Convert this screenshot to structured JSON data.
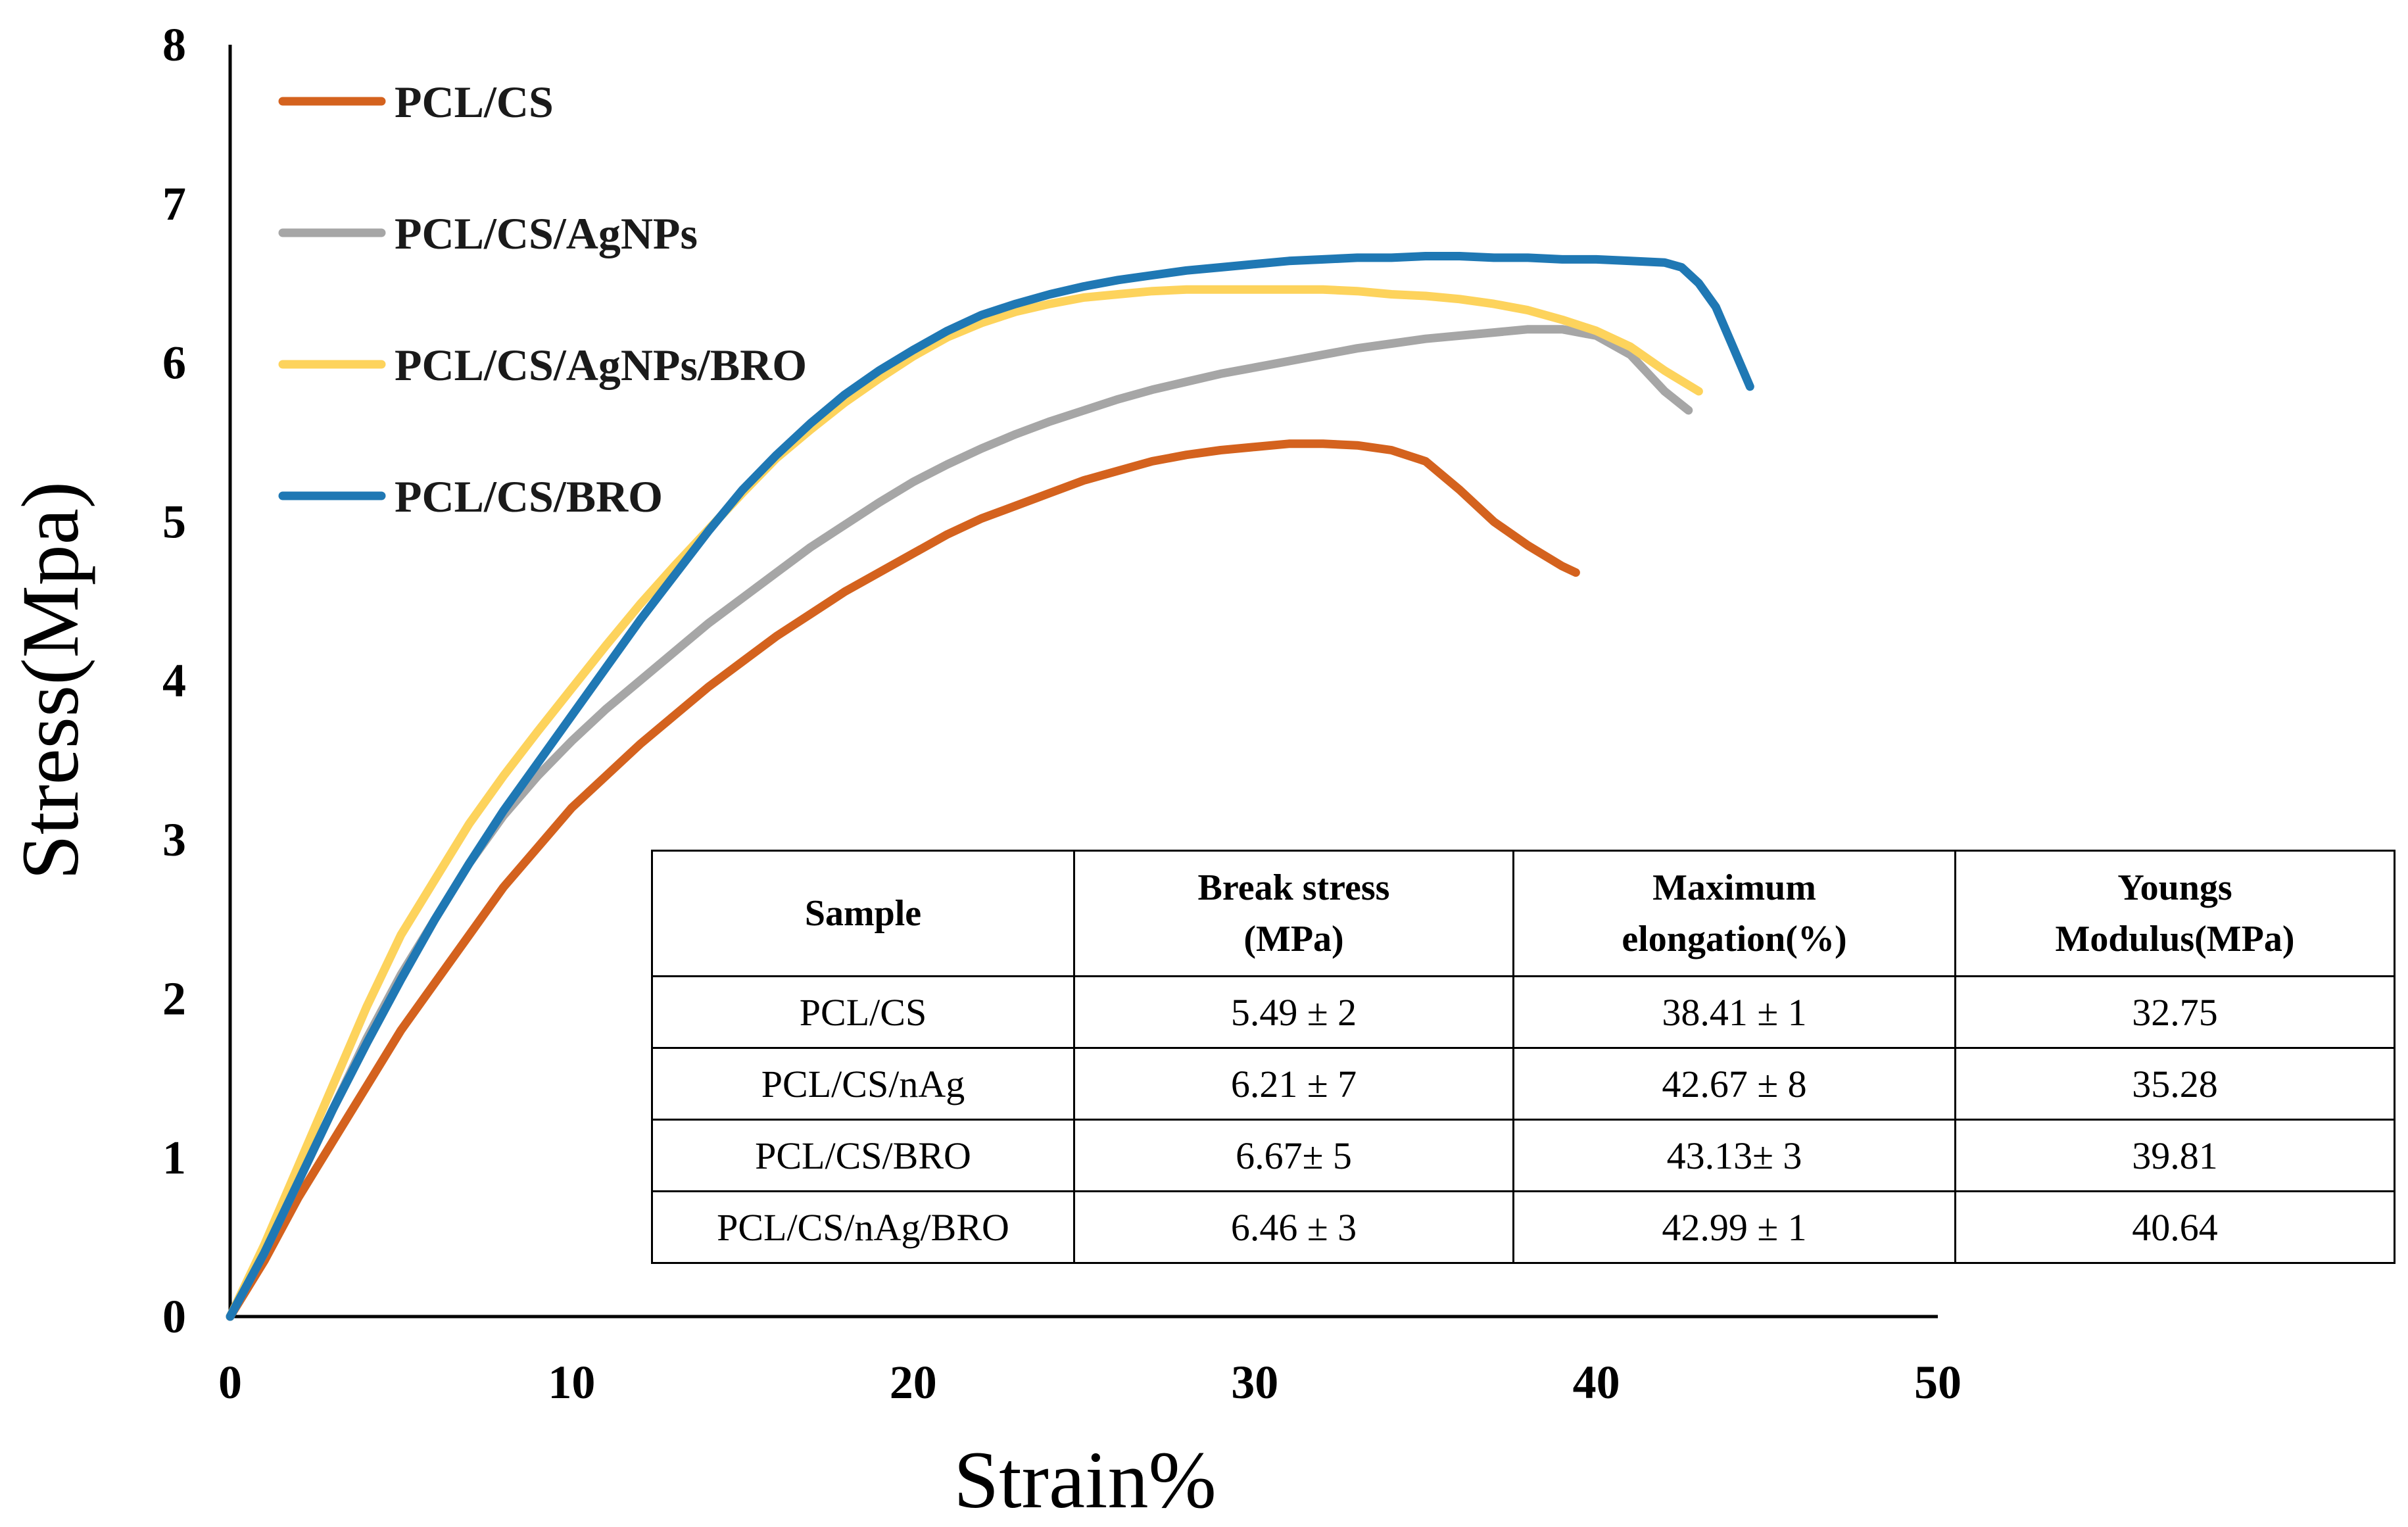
{
  "chart_data": {
    "type": "line",
    "title": "",
    "xlabel": "Strain%",
    "ylabel": "Stress(Mpa)",
    "xlim": [
      0,
      50
    ],
    "ylim": [
      0,
      8
    ],
    "xticks": [
      0,
      10,
      20,
      30,
      40,
      50
    ],
    "yticks": [
      0,
      1,
      2,
      3,
      4,
      5,
      6,
      7,
      8
    ],
    "grid": false,
    "legend_position": "top-left",
    "series": [
      {
        "name": "PCL/CS",
        "color": "#d4621e",
        "x": [
          0,
          1,
          2,
          3,
          4,
          5,
          6,
          7,
          8,
          9,
          10,
          11,
          12,
          13,
          14,
          15,
          16,
          17,
          18,
          19,
          20,
          21,
          22,
          23,
          24,
          25,
          26,
          27,
          28,
          29,
          30,
          31,
          32,
          33,
          34,
          35,
          36,
          37,
          38,
          39,
          39.4
        ],
        "y": [
          0,
          0.35,
          0.75,
          1.1,
          1.45,
          1.8,
          2.1,
          2.4,
          2.7,
          2.95,
          3.2,
          3.4,
          3.6,
          3.78,
          3.96,
          4.12,
          4.28,
          4.42,
          4.56,
          4.68,
          4.8,
          4.92,
          5.02,
          5.1,
          5.18,
          5.26,
          5.32,
          5.38,
          5.42,
          5.45,
          5.47,
          5.49,
          5.49,
          5.48,
          5.45,
          5.38,
          5.2,
          5.0,
          4.85,
          4.72,
          4.68
        ]
      },
      {
        "name": "PCL/CS/AgNPs",
        "color": "#a6a6a6",
        "x": [
          0,
          1,
          2,
          3,
          4,
          5,
          6,
          7,
          8,
          9,
          10,
          11,
          12,
          13,
          14,
          15,
          16,
          17,
          18,
          19,
          20,
          21,
          22,
          23,
          24,
          25,
          26,
          27,
          28,
          29,
          30,
          31,
          32,
          33,
          34,
          35,
          36,
          37,
          38,
          39,
          40,
          41,
          42,
          42.7
        ],
        "y": [
          0,
          0.4,
          0.85,
          1.3,
          1.75,
          2.15,
          2.5,
          2.85,
          3.15,
          3.4,
          3.62,
          3.82,
          4.0,
          4.18,
          4.36,
          4.52,
          4.68,
          4.84,
          4.98,
          5.12,
          5.25,
          5.36,
          5.46,
          5.55,
          5.63,
          5.7,
          5.77,
          5.83,
          5.88,
          5.93,
          5.97,
          6.01,
          6.05,
          6.09,
          6.12,
          6.15,
          6.17,
          6.19,
          6.21,
          6.21,
          6.17,
          6.05,
          5.82,
          5.7
        ]
      },
      {
        "name": "PCL/CS/AgNPs/BRO",
        "color": "#fdd35c",
        "x": [
          0,
          1,
          2,
          3,
          4,
          5,
          6,
          7,
          8,
          9,
          10,
          11,
          12,
          13,
          14,
          15,
          16,
          17,
          18,
          19,
          20,
          21,
          22,
          23,
          24,
          25,
          26,
          27,
          28,
          29,
          30,
          31,
          32,
          33,
          34,
          35,
          36,
          37,
          38,
          39,
          40,
          41,
          42,
          43
        ],
        "y": [
          0,
          0.45,
          0.95,
          1.45,
          1.95,
          2.4,
          2.75,
          3.1,
          3.4,
          3.68,
          3.95,
          4.22,
          4.48,
          4.72,
          4.95,
          5.18,
          5.4,
          5.58,
          5.75,
          5.9,
          6.04,
          6.16,
          6.25,
          6.32,
          6.37,
          6.41,
          6.43,
          6.45,
          6.46,
          6.46,
          6.46,
          6.46,
          6.46,
          6.45,
          6.43,
          6.42,
          6.4,
          6.37,
          6.33,
          6.27,
          6.2,
          6.1,
          5.95,
          5.82
        ]
      },
      {
        "name": "PCL/CS/BRO",
        "color": "#1f78b4",
        "x": [
          0,
          1,
          2,
          3,
          4,
          5,
          6,
          7,
          8,
          9,
          10,
          11,
          12,
          13,
          14,
          15,
          16,
          17,
          18,
          19,
          20,
          21,
          22,
          23,
          24,
          25,
          26,
          27,
          28,
          29,
          30,
          31,
          32,
          33,
          34,
          35,
          36,
          37,
          38,
          39,
          40,
          41,
          42,
          42.5,
          43,
          43.5,
          44,
          44.5
        ],
        "y": [
          0,
          0.4,
          0.85,
          1.3,
          1.72,
          2.12,
          2.5,
          2.85,
          3.18,
          3.48,
          3.78,
          4.08,
          4.38,
          4.66,
          4.94,
          5.2,
          5.42,
          5.62,
          5.8,
          5.95,
          6.08,
          6.2,
          6.3,
          6.37,
          6.43,
          6.48,
          6.52,
          6.55,
          6.58,
          6.6,
          6.62,
          6.64,
          6.65,
          6.66,
          6.66,
          6.67,
          6.67,
          6.66,
          6.66,
          6.65,
          6.65,
          6.64,
          6.63,
          6.6,
          6.5,
          6.35,
          6.1,
          5.85
        ]
      }
    ]
  },
  "table": {
    "headers": [
      {
        "line1": "Sample",
        "line2": ""
      },
      {
        "line1": "Break stress",
        "line2": "(MPa)"
      },
      {
        "line1": "Maximum",
        "line2": "elongation(%)"
      },
      {
        "line1": "Youngs",
        "line2": "Modulus(MPa)"
      }
    ],
    "rows": [
      [
        "PCL/CS",
        "5.49 ± 2",
        "38.41 ± 1",
        "32.75"
      ],
      [
        "PCL/CS/nAg",
        "6.21 ± 7",
        "42.67 ± 8",
        "35.28"
      ],
      [
        "PCL/CS/BRO",
        "6.67± 5",
        "43.13± 3",
        "39.81"
      ],
      [
        "PCL/CS/nAg/BRO",
        "6.46 ± 3",
        "42.99 ± 1",
        "40.64"
      ]
    ]
  }
}
